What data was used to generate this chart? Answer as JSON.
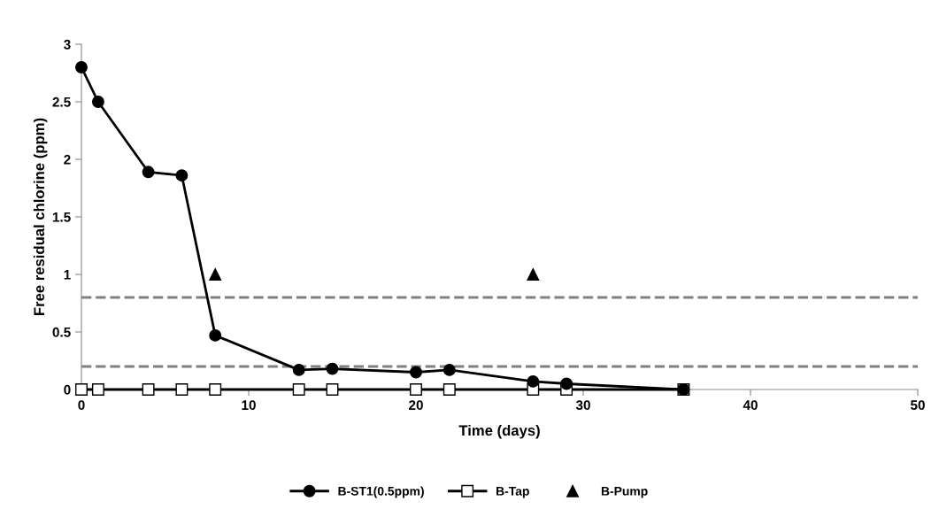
{
  "chart_data": {
    "type": "line",
    "xlabel": "Time (days)",
    "ylabel": "Free residual chlorine (ppm)",
    "xlim": [
      0,
      50
    ],
    "xticks": [
      0,
      10,
      20,
      30,
      40,
      50
    ],
    "ylim": [
      0,
      3
    ],
    "yticks": [
      0,
      0.5,
      1,
      1.5,
      2,
      2.5,
      3
    ],
    "grid": false,
    "legend": "bottom",
    "series": [
      {
        "name": "B-ST1(0.5ppm)",
        "color": "#000000",
        "marker": "circle",
        "x": [
          0,
          1,
          4,
          6,
          8,
          13,
          15,
          20,
          22,
          27,
          29,
          36
        ],
        "values": [
          2.8,
          2.5,
          1.89,
          1.86,
          0.47,
          0.17,
          0.18,
          0.15,
          0.17,
          0.07,
          0.05,
          0
        ]
      },
      {
        "name": "B-Tap",
        "color": "#000000",
        "marker": "square",
        "x": [
          0,
          1,
          4,
          6,
          8,
          13,
          15,
          20,
          22,
          27,
          29,
          36
        ],
        "values": [
          0,
          0,
          0,
          0,
          0,
          0,
          0,
          0,
          0,
          0,
          0,
          0
        ]
      },
      {
        "name": "B-Pump",
        "color": "#000000",
        "type": "scatter",
        "marker": "triangle",
        "x": [
          8,
          27
        ],
        "values": [
          1,
          1
        ]
      }
    ],
    "ref_lines": [
      {
        "axis": "y",
        "value": 0.8,
        "label": null,
        "color": "#808080",
        "line_style": "dashed"
      },
      {
        "axis": "y",
        "value": 0.2,
        "label": null,
        "color": "#808080",
        "line_style": "dashed"
      }
    ]
  }
}
